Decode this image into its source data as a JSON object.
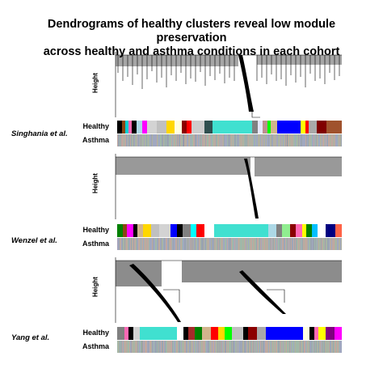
{
  "title_line1": "Dendrograms of healthy clusters reveal low module preservation",
  "title_line2": "across healthy and asthma conditions in each cohort",
  "y_axis_label": "Height",
  "row_labels": {
    "healthy": "Healthy",
    "asthma": "Asthma"
  },
  "cohorts": [
    {
      "name": "Singhania et al.",
      "healthy_colors": [
        "#000000",
        "#8B4513",
        "#00CED1",
        "#FF69B4",
        "#000000",
        "#ADD8E6",
        "#FF00FF",
        "#D3D3D3",
        "#C0C0C0",
        "#FFD700",
        "#FFFFE0",
        "#8B0000",
        "#FF0000",
        "#CCCCCC",
        "#2F4F4F",
        "#40E0D0",
        "#40E0D0",
        "#40E0D0",
        "#808080",
        "#E6E6FA",
        "#BC8F8F",
        "#00FF00",
        "#D2B48C",
        "#0000FF",
        "#0000FF",
        "#FFFF00",
        "#FF0000",
        "#A9A9A9",
        "#800000",
        "#A0522D"
      ],
      "healthy_widths": [
        3,
        2,
        2,
        2,
        3,
        3,
        3,
        6,
        6,
        5,
        4,
        3,
        3,
        8,
        5,
        8,
        8,
        8,
        3,
        3,
        3,
        2,
        4,
        7,
        7,
        3,
        2,
        5,
        6,
        9
      ]
    },
    {
      "name": "Wenzel et al.",
      "healthy_colors": [
        "#008000",
        "#8B4513",
        "#FF00FF",
        "#000000",
        "#D2B48C",
        "#FFD700",
        "#C0C0C0",
        "#D3D3D3",
        "#0000FF",
        "#000000",
        "#808080",
        "#00FFFF",
        "#FF0000",
        "#FFFFFF",
        "#40E0D0",
        "#40E0D0",
        "#40E0D0",
        "#ADD8E6",
        "#808080",
        "#90EE90",
        "#8B0000",
        "#FF69B4",
        "#FFFF00",
        "#008000",
        "#00BFFF",
        "#FFFFFF",
        "#000080",
        "#FF6347"
      ],
      "healthy_widths": [
        3,
        2,
        3,
        2,
        3,
        4,
        4,
        6,
        3,
        3,
        4,
        3,
        4,
        5,
        9,
        9,
        9,
        4,
        3,
        4,
        3,
        3,
        2,
        3,
        3,
        4,
        5,
        3
      ]
    },
    {
      "name": "Yang et al.",
      "healthy_colors": [
        "#808080",
        "#FF69B4",
        "#000000",
        "#D3D3D3",
        "#40E0D0",
        "#40E0D0",
        "#FFFFFF",
        "#000000",
        "#A52A2A",
        "#008000",
        "#D2B48C",
        "#FF0000",
        "#FFD700",
        "#00FF00",
        "#C0C0C0",
        "#000000",
        "#8B0000",
        "#A9A9A9",
        "#0000FF",
        "#0000FF",
        "#FFFFE0",
        "#000000",
        "#FF69B4",
        "#FFFF00",
        "#800080",
        "#FF00FF"
      ],
      "healthy_widths": [
        3,
        2,
        2,
        3,
        8,
        8,
        3,
        2,
        3,
        3,
        4,
        3,
        3,
        3,
        5,
        2,
        4,
        4,
        8,
        8,
        3,
        2,
        2,
        3,
        4,
        3
      ]
    }
  ],
  "colors": {
    "dendro_line": "#000000",
    "asthma_base": "#9aa3b0"
  }
}
